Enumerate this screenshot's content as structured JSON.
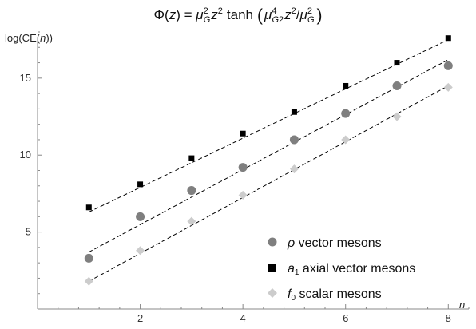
{
  "chart_data": {
    "type": "scatter",
    "title": "",
    "title_math": {
      "lhs": "Φ(",
      "var_z": "z",
      "rhs_open": ") = ",
      "mu": "μ",
      "sub_G": "G",
      "sup_2": "2",
      "sup_4": "4",
      "tanh": "tanh",
      "paren_open": "(",
      "paren_close": ")",
      "slash": "/"
    },
    "xlabel": "n",
    "ylabel": "log(CE(n))",
    "ylabel_parts": {
      "prefix": "log(CE(",
      "var": "n",
      "suffix": "))"
    },
    "xlim": [
      0,
      8.4
    ],
    "ylim": [
      0,
      18
    ],
    "xticks": [
      2,
      4,
      6,
      8
    ],
    "yticks": [
      5,
      10,
      15
    ],
    "grid": false,
    "legend_position": "bottom-right",
    "series": [
      {
        "name": "ρ vector mesons",
        "name_var": "ρ",
        "name_text": " vector mesons",
        "marker": "circle",
        "color": "#7f7f7f",
        "x": [
          1,
          2,
          3,
          4,
          5,
          6,
          7,
          8
        ],
        "y": [
          3.3,
          6.0,
          7.7,
          9.2,
          11.0,
          12.7,
          14.5,
          15.8
        ],
        "fit": {
          "x": [
            1,
            8
          ],
          "y": [
            3.7,
            16.2
          ]
        }
      },
      {
        "name": "a1 axial vector mesons",
        "name_var": "a",
        "name_sub": "1",
        "name_text": " axial vector mesons",
        "marker": "square",
        "color": "#000000",
        "x": [
          1,
          2,
          3,
          4,
          5,
          6,
          7,
          8
        ],
        "y": [
          6.6,
          8.1,
          9.8,
          11.4,
          12.8,
          14.5,
          16.0,
          17.6
        ],
        "fit": {
          "x": [
            1,
            8
          ],
          "y": [
            6.3,
            17.5
          ]
        }
      },
      {
        "name": "f0 scalar mesons",
        "name_var": "f",
        "name_sub": "0",
        "name_text": " scalar mesons",
        "marker": "diamond",
        "color": "#cccccc",
        "x": [
          1,
          2,
          3,
          4,
          5,
          6,
          7,
          8
        ],
        "y": [
          1.8,
          3.8,
          5.7,
          7.4,
          9.1,
          11.0,
          12.5,
          14.4
        ],
        "fit": {
          "x": [
            1,
            8
          ],
          "y": [
            1.8,
            14.5
          ]
        }
      }
    ]
  }
}
